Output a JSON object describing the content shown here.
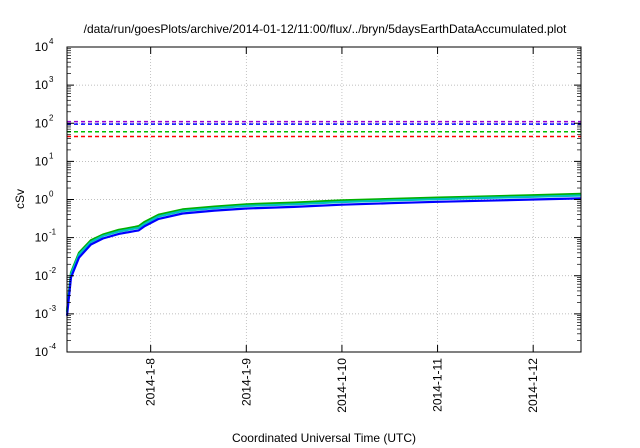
{
  "chart_data": {
    "type": "line",
    "title": "/data/run/goesPlots/archive/2014-01-12/11:00/flux/../bryn/5daysEarthDataAccumulated.plot",
    "xlabel": "Coordinated Universal Time (UTC)",
    "ylabel": "cSv",
    "y_scale": "log",
    "ylim_exp": [
      -4,
      4
    ],
    "y_tick_base": "10",
    "y_tick_exponents": [
      "-4",
      "-3",
      "-2",
      "-1",
      "0",
      "1",
      "2",
      "3",
      "4"
    ],
    "xlim": [
      "2014-01-07T03:00",
      "2014-01-12T12:00"
    ],
    "x_ticks": [
      {
        "label": "2014-1-8",
        "date": "2014-01-08T00:00"
      },
      {
        "label": "2014-1-9",
        "date": "2014-01-09T00:00"
      },
      {
        "label": "2014-1-10",
        "date": "2014-01-10T00:00"
      },
      {
        "label": "2014-1-11",
        "date": "2014-01-11T00:00"
      },
      {
        "label": "2014-1-12",
        "date": "2014-01-12T00:00"
      }
    ],
    "grid": true,
    "thresholds": [
      {
        "value": 110,
        "color": "#9400d3"
      },
      {
        "value": 95,
        "color": "#0000ff"
      },
      {
        "value": 60,
        "color": "#00c000"
      },
      {
        "value": 45,
        "color": "#ff0000"
      }
    ],
    "series": [
      {
        "color": "#00b000",
        "x": [
          "2014-01-07T03:00",
          "2014-01-07T04:00",
          "2014-01-07T06:00",
          "2014-01-07T09:00",
          "2014-01-07T12:00",
          "2014-01-07T16:00",
          "2014-01-07T20:00",
          "2014-01-07T21:00",
          "2014-01-07T22:30",
          "2014-01-08T02:00",
          "2014-01-08T08:00",
          "2014-01-08T16:00",
          "2014-01-09T00:00",
          "2014-01-09T12:00",
          "2014-01-10T00:00",
          "2014-01-10T12:00",
          "2014-01-11T00:00",
          "2014-01-11T12:00",
          "2014-01-12T00:00",
          "2014-01-12T12:00"
        ],
        "values": [
          0.0012,
          0.012,
          0.04,
          0.085,
          0.12,
          0.16,
          0.19,
          0.2,
          0.26,
          0.4,
          0.55,
          0.65,
          0.75,
          0.83,
          0.95,
          1.03,
          1.12,
          1.2,
          1.3,
          1.4
        ]
      },
      {
        "color": "#00bfbf",
        "x": [
          "2014-01-07T03:00",
          "2014-01-07T04:00",
          "2014-01-07T06:00",
          "2014-01-07T09:00",
          "2014-01-07T12:00",
          "2014-01-07T16:00",
          "2014-01-07T20:00",
          "2014-01-07T21:00",
          "2014-01-07T22:30",
          "2014-01-08T02:00",
          "2014-01-08T08:00",
          "2014-01-08T16:00",
          "2014-01-09T00:00",
          "2014-01-09T12:00",
          "2014-01-10T00:00",
          "2014-01-10T12:00",
          "2014-01-11T00:00",
          "2014-01-11T12:00",
          "2014-01-12T00:00",
          "2014-01-12T12:00"
        ],
        "values": [
          0.0011,
          0.011,
          0.036,
          0.077,
          0.11,
          0.145,
          0.172,
          0.18,
          0.23,
          0.36,
          0.5,
          0.59,
          0.68,
          0.75,
          0.86,
          0.94,
          1.02,
          1.1,
          1.18,
          1.27
        ]
      },
      {
        "color": "#0000ff",
        "x": [
          "2014-01-07T03:00",
          "2014-01-07T04:00",
          "2014-01-07T06:00",
          "2014-01-07T09:00",
          "2014-01-07T12:00",
          "2014-01-07T16:00",
          "2014-01-07T20:00",
          "2014-01-07T21:00",
          "2014-01-07T22:30",
          "2014-01-08T02:00",
          "2014-01-08T08:00",
          "2014-01-08T16:00",
          "2014-01-09T00:00",
          "2014-01-09T12:00",
          "2014-01-10T00:00",
          "2014-01-10T12:00",
          "2014-01-11T00:00",
          "2014-01-11T12:00",
          "2014-01-12T00:00",
          "2014-01-12T12:00"
        ],
        "values": [
          0.0009,
          0.009,
          0.03,
          0.066,
          0.095,
          0.125,
          0.148,
          0.155,
          0.2,
          0.31,
          0.43,
          0.51,
          0.58,
          0.64,
          0.73,
          0.8,
          0.87,
          0.93,
          1.0,
          1.07
        ]
      }
    ]
  }
}
